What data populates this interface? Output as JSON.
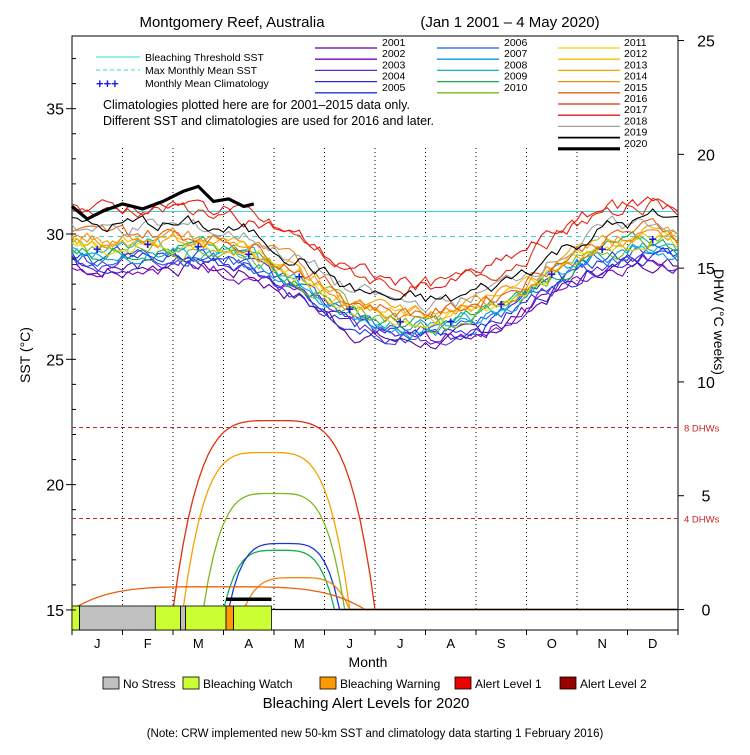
{
  "chart_data": {
    "type": "line",
    "title": "Montgomery Reef, Australia",
    "date_range": "(Jan 1 2001 – 4 May 2020)",
    "xlabel": "Month",
    "x_ticks": [
      "J",
      "F",
      "M",
      "A",
      "M",
      "J",
      "J",
      "A",
      "S",
      "O",
      "N",
      "D"
    ],
    "y_left": {
      "label": "SST (°C)",
      "ticks": [
        15,
        20,
        25,
        30,
        35
      ],
      "range": [
        14.2,
        37.9
      ]
    },
    "y_right": {
      "label": "DHW (°C weeks)",
      "ticks": [
        0,
        5,
        10,
        15,
        20,
        25
      ],
      "range": [
        -0.9,
        25.2
      ]
    },
    "legend_top_left": {
      "bleaching_threshold": "Bleaching Threshold SST",
      "max_monthly_mean": "Max Monthly Mean SST",
      "monthly_mean_clim": "Monthly Mean Climatology"
    },
    "note_lines": [
      "Climatologies plotted here are for 2001–2015 data only.",
      "Different SST and climatologies are used for 2016 and later."
    ],
    "years": [
      {
        "label": "2001",
        "color": "#5a009a"
      },
      {
        "label": "2002",
        "color": "#7a00c8"
      },
      {
        "label": "2003",
        "color": "#5a2ad0"
      },
      {
        "label": "2004",
        "color": "#2a2ad8"
      },
      {
        "label": "2005",
        "color": "#1a3ad8"
      },
      {
        "label": "2006",
        "color": "#1a5ae8"
      },
      {
        "label": "2007",
        "color": "#0a9ae8"
      },
      {
        "label": "2008",
        "color": "#10b4c8"
      },
      {
        "label": "2009",
        "color": "#10b050"
      },
      {
        "label": "2010",
        "color": "#7ab820"
      },
      {
        "label": "2011",
        "color": "#f0d200"
      },
      {
        "label": "2012",
        "color": "#f8be00"
      },
      {
        "label": "2013",
        "color": "#f8a000"
      },
      {
        "label": "2014",
        "color": "#f08a10"
      },
      {
        "label": "2015",
        "color": "#e86010"
      },
      {
        "label": "2016",
        "color": "#e03010"
      },
      {
        "label": "2017",
        "color": "#e81818"
      },
      {
        "label": "2018",
        "color": "#a0a0a0"
      },
      {
        "label": "2019",
        "color": "#000000"
      },
      {
        "label": "2020",
        "color": "#000000"
      }
    ],
    "bleaching_threshold_sst": 30.9,
    "max_monthly_mean_sst": 29.9,
    "dhw_reference_lines": [
      {
        "value": 8,
        "label": "8 DHWs"
      },
      {
        "value": 4,
        "label": "4 DHWs"
      }
    ],
    "monthly_mean_climatology": [
      {
        "month": "J",
        "sst": 29.4
      },
      {
        "month": "F",
        "sst": 29.6
      },
      {
        "month": "M",
        "sst": 29.5
      },
      {
        "month": "A",
        "sst": 29.2
      },
      {
        "month": "M",
        "sst": 28.3
      },
      {
        "month": "J",
        "sst": 27.0
      },
      {
        "month": "J",
        "sst": 26.5
      },
      {
        "month": "A",
        "sst": 26.5
      },
      {
        "month": "S",
        "sst": 27.2
      },
      {
        "month": "O",
        "sst": 28.4
      },
      {
        "month": "N",
        "sst": 29.4
      },
      {
        "month": "D",
        "sst": 29.8
      }
    ],
    "sst_2020": [
      {
        "month_pos": 0.0,
        "sst": 31.1
      },
      {
        "month_pos": 0.3,
        "sst": 30.6
      },
      {
        "month_pos": 0.6,
        "sst": 30.9
      },
      {
        "month_pos": 1.0,
        "sst": 31.2
      },
      {
        "month_pos": 1.4,
        "sst": 31.0
      },
      {
        "month_pos": 1.8,
        "sst": 31.3
      },
      {
        "month_pos": 2.2,
        "sst": 31.7
      },
      {
        "month_pos": 2.5,
        "sst": 31.9
      },
      {
        "month_pos": 2.8,
        "sst": 31.3
      },
      {
        "month_pos": 3.1,
        "sst": 31.4
      },
      {
        "month_pos": 3.4,
        "sst": 31.1
      },
      {
        "month_pos": 3.6,
        "sst": 31.2
      }
    ],
    "alert_levels_legend": [
      {
        "label": "No Stress",
        "color": "#c0c0c0"
      },
      {
        "label": "Bleaching Watch",
        "color": "#ccff33"
      },
      {
        "label": "Bleaching Warning",
        "color": "#ff9900"
      },
      {
        "label": "Alert Level 1",
        "color": "#ee0000"
      },
      {
        "label": "Alert Level 2",
        "color": "#990000"
      }
    ],
    "alert_levels_2020": [
      {
        "from": 0.0,
        "to": 0.15,
        "level": "Bleaching Watch"
      },
      {
        "from": 0.15,
        "to": 1.65,
        "level": "No Stress"
      },
      {
        "from": 1.65,
        "to": 2.15,
        "level": "Bleaching Watch"
      },
      {
        "from": 2.15,
        "to": 2.25,
        "level": "No Stress"
      },
      {
        "from": 2.25,
        "to": 3.05,
        "level": "Bleaching Watch"
      },
      {
        "from": 3.05,
        "to": 3.2,
        "level": "Bleaching Warning"
      },
      {
        "from": 3.2,
        "to": 3.95,
        "level": "Bleaching Watch"
      }
    ],
    "alert_title": "Bleaching Alert Levels for 2020",
    "footnote": "(Note: CRW implemented new 50-km SST and climatology data starting 1 February 2016)"
  }
}
